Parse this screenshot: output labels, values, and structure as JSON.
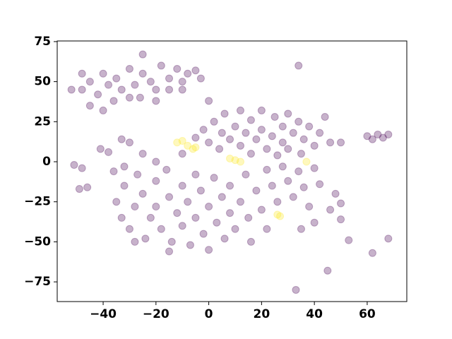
{
  "chart_data": {
    "type": "scatter",
    "xlim": [
      -57.4,
      75
    ],
    "ylim": [
      -87.3,
      75.4
    ],
    "xticks": [
      {
        "value": -40,
        "label": "−40"
      },
      {
        "value": -20,
        "label": "−20"
      },
      0,
      20,
      40,
      60
    ],
    "yticks": [
      {
        "value": -75,
        "label": "−75"
      },
      {
        "value": -50,
        "label": "−50"
      },
      {
        "value": -25,
        "label": "−25"
      },
      0,
      25,
      50,
      75
    ],
    "series": [
      {
        "color": "#440154",
        "x": [
          -48,
          -45,
          -42,
          -40,
          -38,
          -36,
          -35,
          -33,
          -30,
          -28,
          -26,
          -25,
          -22,
          -20,
          -18,
          -15,
          -12,
          -10,
          -8,
          -5,
          -3,
          -45,
          -40,
          -30,
          -20,
          -25,
          -48,
          -52,
          -15,
          -10,
          -2,
          0,
          2,
          4,
          5,
          6,
          8,
          10,
          12,
          12,
          14,
          16,
          16,
          18,
          20,
          20,
          22,
          24,
          25,
          26,
          28,
          28,
          30,
          30,
          32,
          34,
          35,
          36,
          38,
          40,
          42,
          44,
          46,
          -5,
          0,
          60,
          62,
          64,
          66,
          68,
          50,
          -51,
          -48,
          -49,
          -46,
          -41,
          -38,
          -36,
          -32,
          -33,
          -30,
          -35,
          -33,
          -32,
          -30,
          -28,
          -27,
          -25,
          -24,
          -22,
          -20,
          -20,
          -18,
          -16,
          -15,
          -14,
          -12,
          -10,
          -10,
          -8,
          -7,
          -5,
          -5,
          -3,
          -2,
          0,
          0,
          2,
          3,
          5,
          6,
          8,
          8,
          10,
          12,
          14,
          15,
          16,
          18,
          20,
          22,
          -25,
          -20,
          -10,
          -28,
          -15,
          22,
          24,
          26,
          28,
          30,
          32,
          34,
          36,
          38,
          40,
          42,
          40,
          35,
          48,
          50,
          34,
          33,
          45,
          62,
          68,
          53,
          50,
          46
        ],
        "values": [
          45,
          50,
          42,
          55,
          48,
          38,
          52,
          45,
          58,
          48,
          40,
          55,
          50,
          45,
          60,
          52,
          58,
          50,
          55,
          57,
          52,
          35,
          32,
          40,
          38,
          67,
          55,
          45,
          45,
          45,
          20,
          12,
          25,
          8,
          18,
          30,
          14,
          22,
          10,
          32,
          18,
          5,
          26,
          14,
          20,
          32,
          8,
          16,
          28,
          4,
          12,
          22,
          30,
          8,
          18,
          25,
          5,
          14,
          22,
          10,
          18,
          28,
          12,
          15,
          38,
          16,
          14,
          17,
          15,
          17,
          12,
          -2,
          -4,
          -17,
          -16,
          8,
          6,
          -6,
          -3,
          14,
          12,
          -25,
          -35,
          -15,
          -42,
          -28,
          -8,
          -20,
          -48,
          -35,
          -12,
          -28,
          -42,
          -5,
          -22,
          -50,
          -32,
          -15,
          -40,
          -25,
          -52,
          -8,
          -35,
          -18,
          -45,
          -28,
          -55,
          -10,
          -38,
          -22,
          -48,
          -15,
          -32,
          -42,
          -25,
          -8,
          -35,
          -50,
          -18,
          -30,
          -42,
          5,
          0,
          5,
          -50,
          -56,
          -5,
          -15,
          -25,
          -3,
          -12,
          -22,
          -6,
          -16,
          -28,
          -4,
          -14,
          -38,
          -42,
          -20,
          -26,
          60,
          -80,
          -68,
          -57,
          -48,
          -49,
          -36,
          -30
        ]
      },
      {
        "color": "#fde725",
        "x": [
          -10,
          -8,
          -12,
          -5,
          -6,
          10,
          8,
          12,
          27,
          26,
          37
        ],
        "values": [
          13,
          10,
          12,
          9,
          8,
          1,
          2,
          0,
          -34,
          -33,
          0
        ]
      }
    ]
  }
}
